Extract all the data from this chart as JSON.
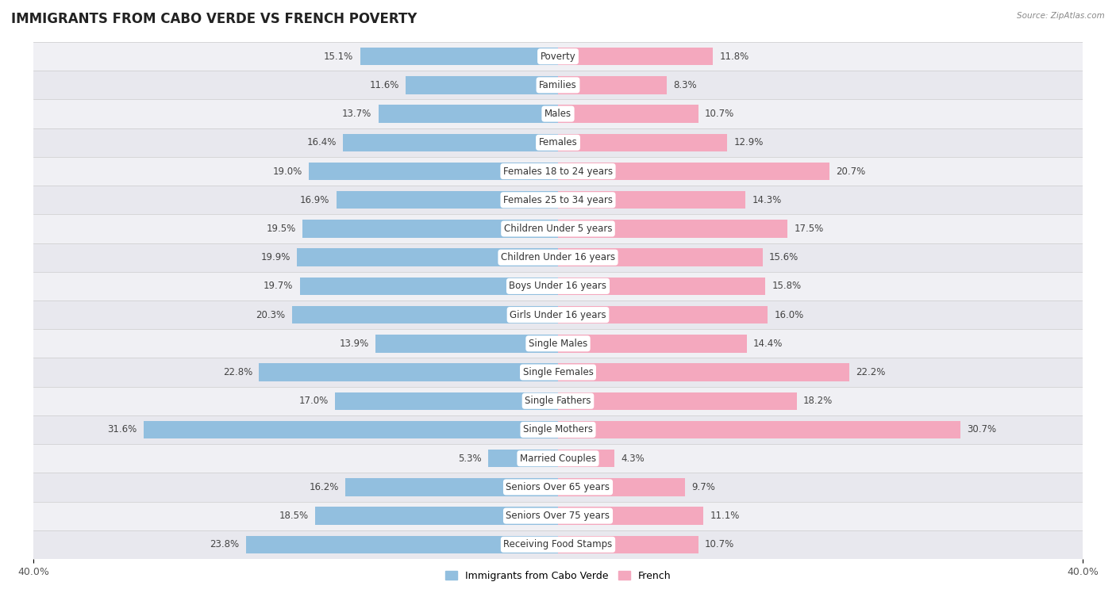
{
  "title": "IMMIGRANTS FROM CABO VERDE VS FRENCH POVERTY",
  "source": "Source: ZipAtlas.com",
  "categories": [
    "Poverty",
    "Families",
    "Males",
    "Females",
    "Females 18 to 24 years",
    "Females 25 to 34 years",
    "Children Under 5 years",
    "Children Under 16 years",
    "Boys Under 16 years",
    "Girls Under 16 years",
    "Single Males",
    "Single Females",
    "Single Fathers",
    "Single Mothers",
    "Married Couples",
    "Seniors Over 65 years",
    "Seniors Over 75 years",
    "Receiving Food Stamps"
  ],
  "cabo_verde_values": [
    15.1,
    11.6,
    13.7,
    16.4,
    19.0,
    16.9,
    19.5,
    19.9,
    19.7,
    20.3,
    13.9,
    22.8,
    17.0,
    31.6,
    5.3,
    16.2,
    18.5,
    23.8
  ],
  "french_values": [
    11.8,
    8.3,
    10.7,
    12.9,
    20.7,
    14.3,
    17.5,
    15.6,
    15.8,
    16.0,
    14.4,
    22.2,
    18.2,
    30.7,
    4.3,
    9.7,
    11.1,
    10.7
  ],
  "cabo_verde_color": "#92bfdf",
  "french_color": "#f4a8be",
  "cabo_verde_label": "Immigrants from Cabo Verde",
  "french_label": "French",
  "x_max": 40.0,
  "row_colors": [
    "#f0f0f0",
    "#ffffff"
  ],
  "title_fontsize": 12,
  "label_fontsize": 8.5,
  "value_fontsize": 8.5,
  "axis_fontsize": 9
}
